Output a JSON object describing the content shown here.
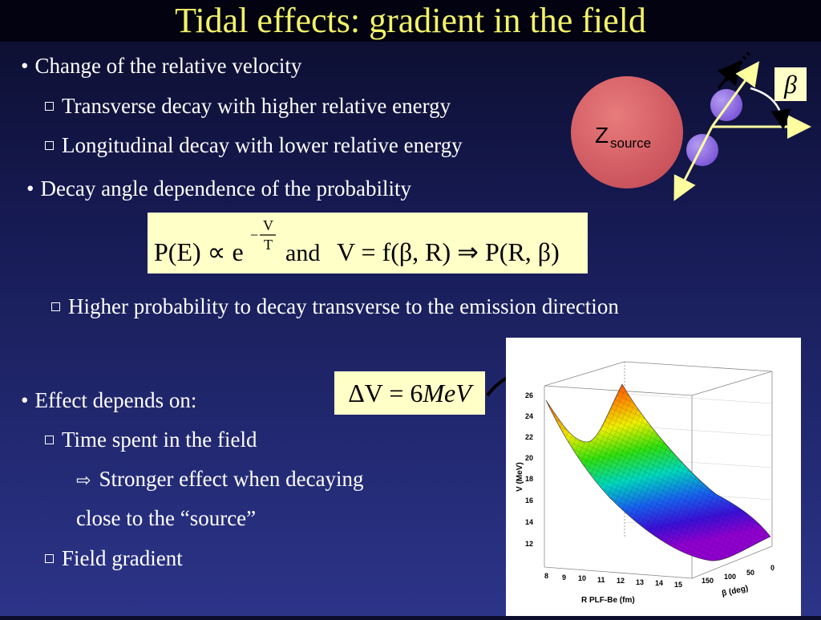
{
  "slide_title": "Tidal effects: gradient in the field",
  "bullets": {
    "b1": "Change of the relative velocity",
    "b1_sub1": "Transverse decay with higher relative energy",
    "b1_sub2": "Longitudinal decay with lower relative energy",
    "b2": "Decay angle dependence of the probability",
    "b2_sub1": "Higher probability to decay transverse to the emission direction",
    "b3": "Effect depends on:",
    "b3_sub1": "Time spent in the field",
    "b3_sub1_detail_1": "Stronger effect when decaying",
    "b3_sub1_detail_2": "close to the “source”",
    "b3_sub2": "Field gradient"
  },
  "formula": {
    "lhs": "P(E) ∝ e",
    "exp_num": "V",
    "exp_den": "T",
    "exp_sign": "−",
    "middle": "and",
    "rhs": "V = f(β, R) ⇒ P(R, β)"
  },
  "delta_v": {
    "lhs": "ΔV = 6",
    "unit": "MeV"
  },
  "diagram": {
    "source_label_main": "Z",
    "source_label_sub": "source",
    "beta_label": "β"
  },
  "plot": {
    "y_axis_title": "V (MeV)",
    "x_axis_title": "R PLF-Be (fm)",
    "z_axis_title": "β (deg)",
    "y_ticks": [
      "12",
      "14",
      "16",
      "18",
      "20",
      "22",
      "24",
      "26"
    ],
    "x_ticks": [
      "8",
      "9",
      "10",
      "11",
      "12",
      "13",
      "14",
      "15"
    ],
    "z_ticks": [
      "150",
      "100",
      "50",
      "0"
    ]
  },
  "colors": {
    "title": "#f2f26a",
    "box": "#ffffc8",
    "source": "#d9666a",
    "fragment": "#8a6adf",
    "arrow": "#ffffa0"
  }
}
